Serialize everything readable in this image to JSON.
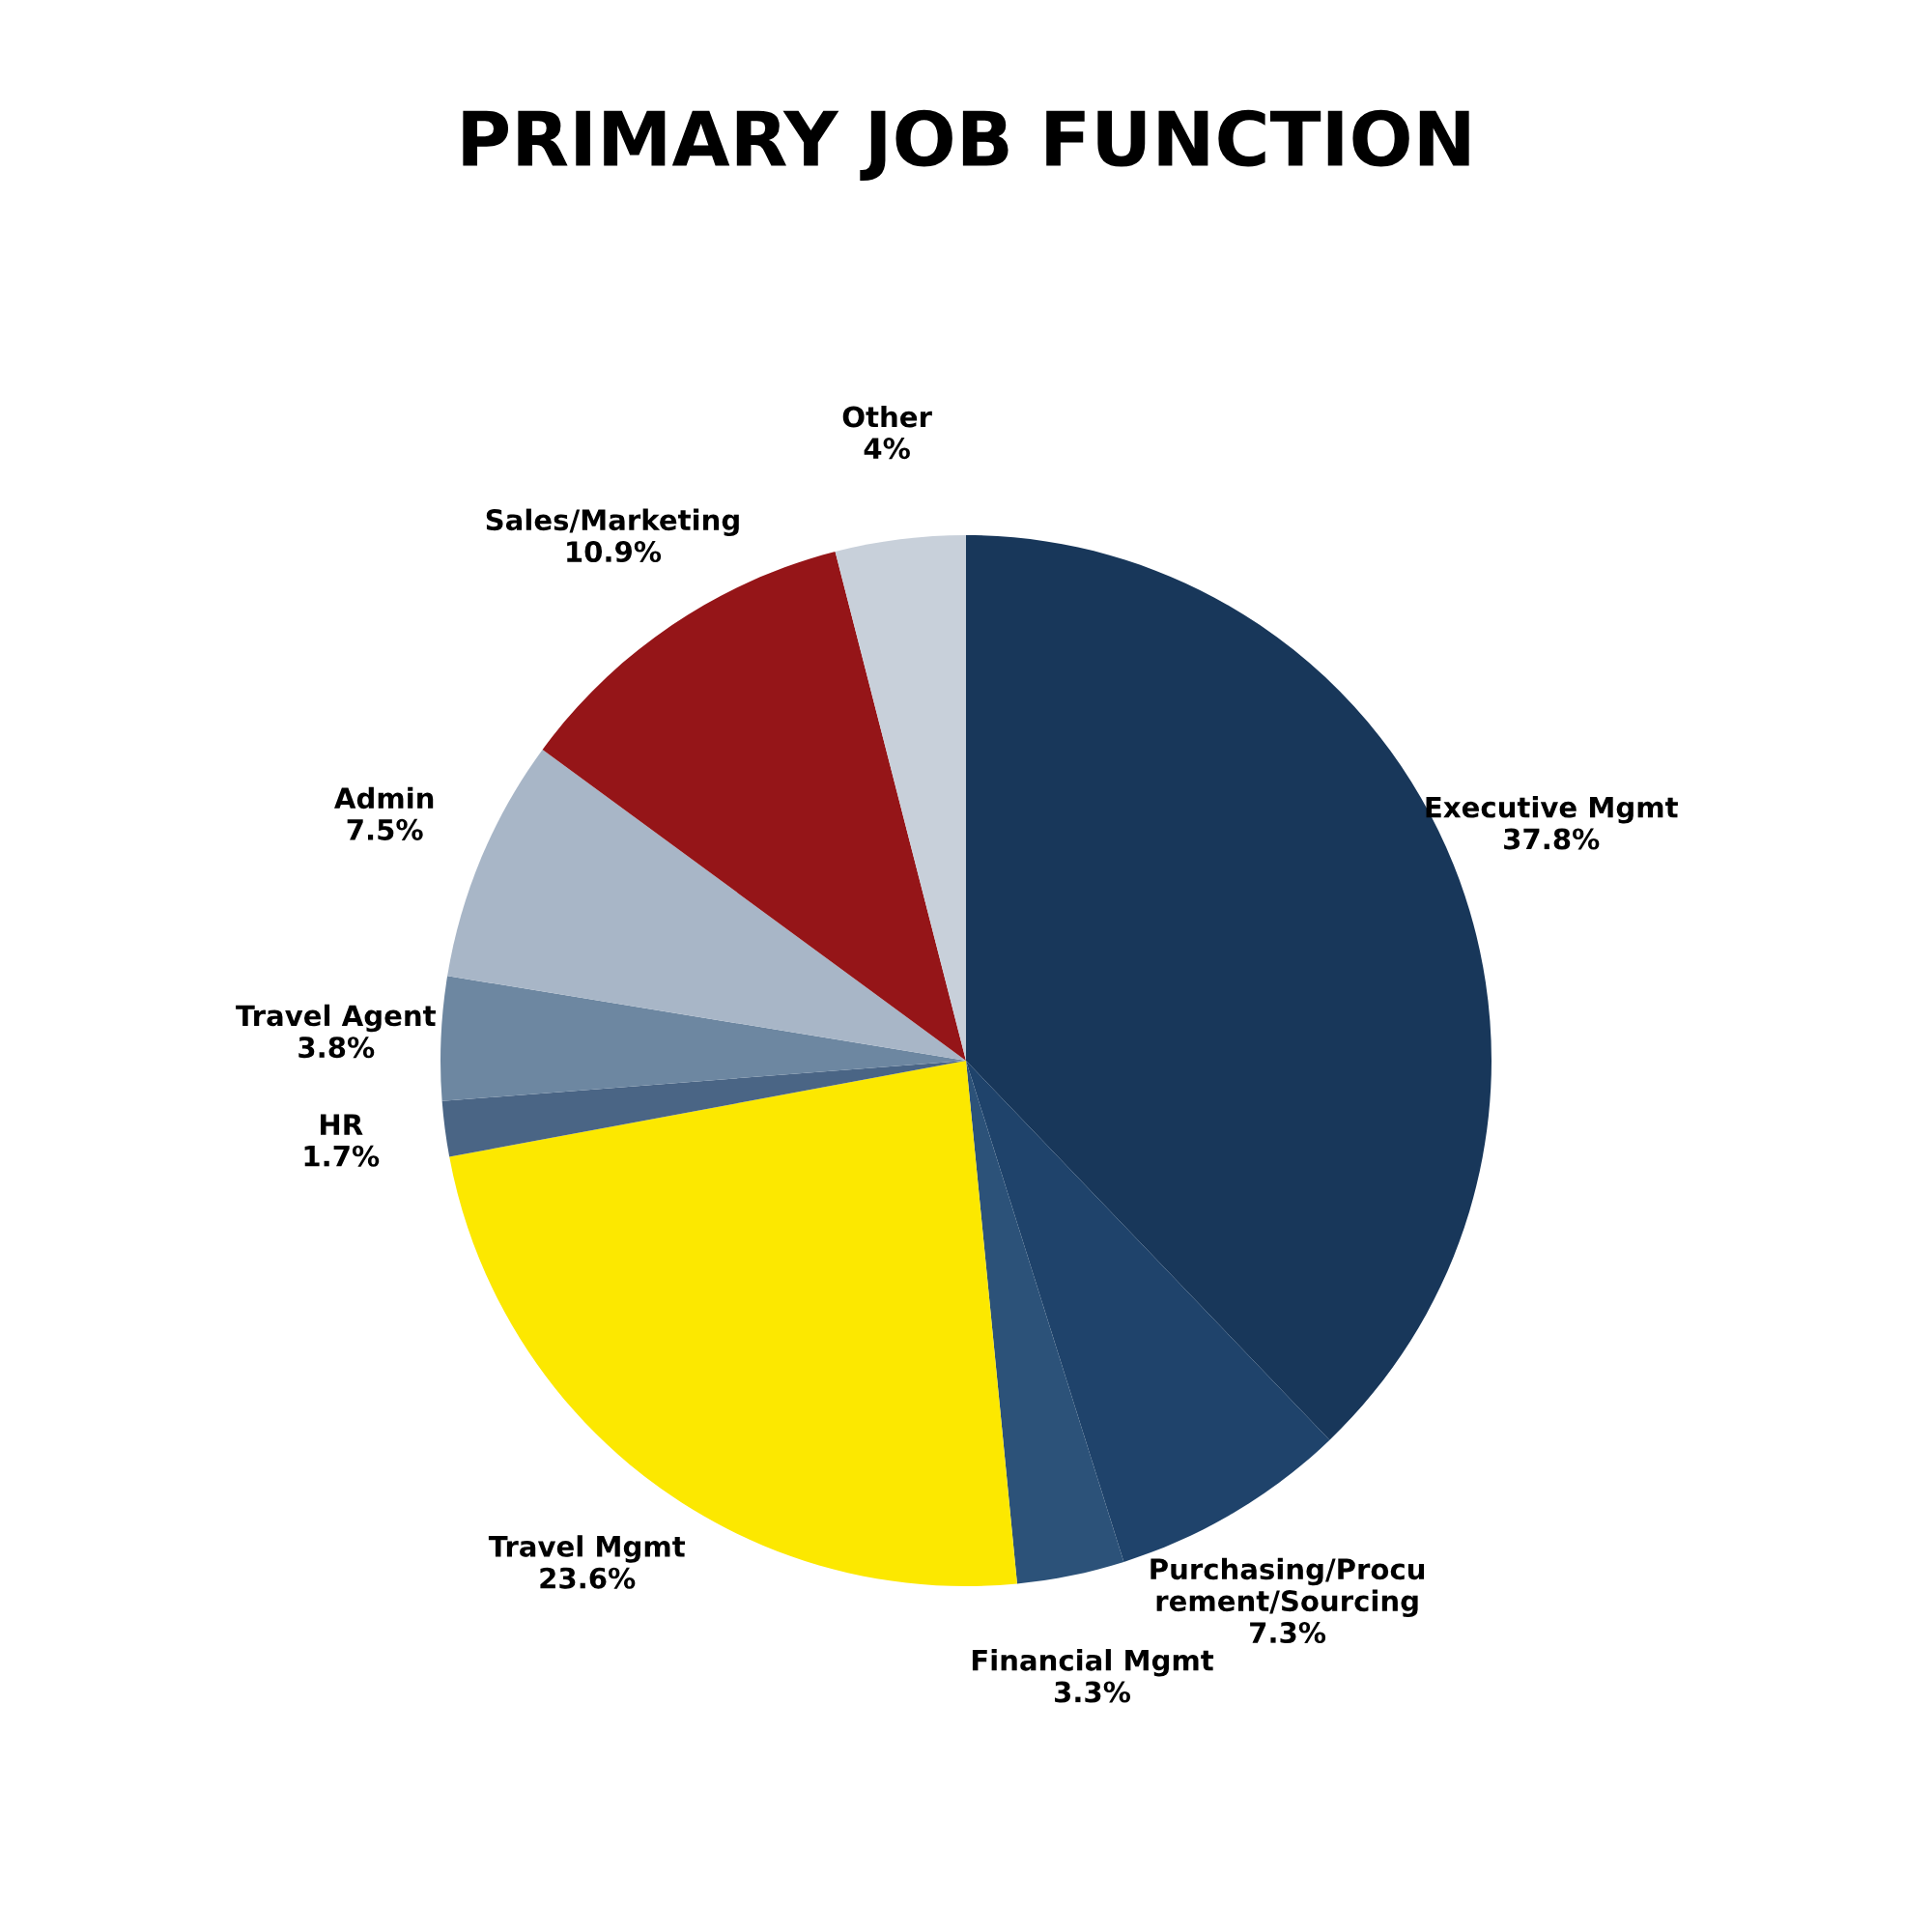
{
  "chart_data": {
    "type": "pie",
    "title": "PRIMARY JOB FUNCTION",
    "categories": [
      "Executive Mgmt",
      "Purchasing/Procu\nrement/Sourcing",
      "Financial Mgmt",
      "Travel Mgmt",
      "HR",
      "Travel Agent",
      "Admin",
      "Sales/Marketing",
      "Other"
    ],
    "values": [
      37.8,
      7.3,
      3.3,
      23.6,
      1.7,
      3.8,
      7.5,
      10.9,
      4
    ],
    "value_labels": [
      "37.8%",
      "7.3%",
      "3.3%",
      "23.6%",
      "1.7%",
      "3.8%",
      "7.5%",
      "10.9%",
      "4%"
    ],
    "colors": [
      "#18375a",
      "#1f436b",
      "#2c5279",
      "#fce800",
      "#4a6585",
      "#6d87a1",
      "#a8b6c7",
      "#951518",
      "#c8d0da"
    ],
    "legend": false
  }
}
